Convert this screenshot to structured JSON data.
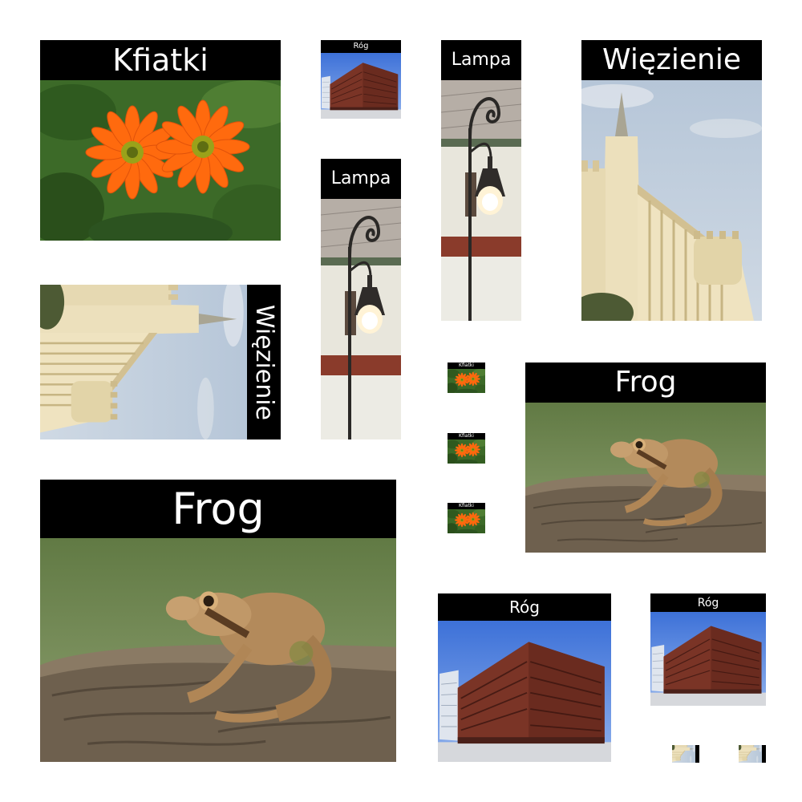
{
  "captions": {
    "kfiatki": "Kfiatki",
    "rog": "Róg",
    "lampa": "Lampa",
    "wiezienie": "Więzienie",
    "frog": "Frog"
  },
  "images": {
    "kfiatki": "orange-gerbera-flowers-photo",
    "rog": "red-brick-corner-building-photo",
    "lampa": "street-lamp-photo",
    "wiezienie": "castle-prison-tower-photo",
    "frog": "frog-on-log-photo"
  },
  "colors": {
    "caption_bg": "#000000",
    "caption_text": "#ffffff",
    "page_bg": "#ffffff"
  }
}
